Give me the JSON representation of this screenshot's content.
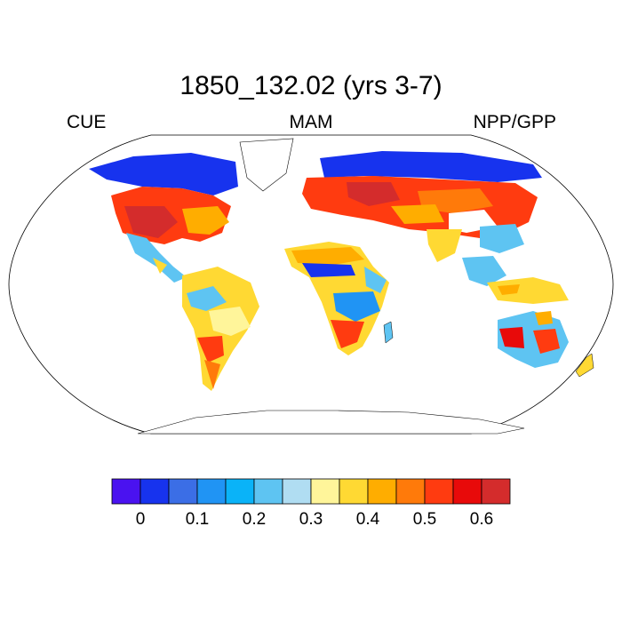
{
  "title": "1850_132.02 (yrs 3-7)",
  "left_label": "CUE",
  "center_label": "MAM",
  "right_label": "NPP/GPP",
  "colorbar": {
    "colors": [
      "#4a12f0",
      "#1733ee",
      "#3b6ee6",
      "#2094f4",
      "#0ab3f8",
      "#5ec4f2",
      "#b0ddf2",
      "#fff59a",
      "#ffd933",
      "#ffad00",
      "#ff7a0a",
      "#ff3b10",
      "#e80a0a",
      "#d42c2c"
    ],
    "tick_labels": [
      "0",
      "0.1",
      "0.2",
      "0.3",
      "0.4",
      "0.5",
      "0.6"
    ]
  },
  "palette": {
    "ocean_outline": "#000000",
    "missing": "#ffffff"
  }
}
